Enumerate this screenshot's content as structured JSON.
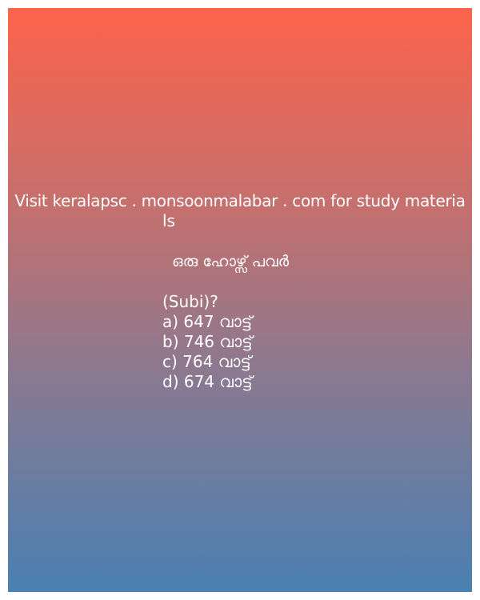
{
  "card": {
    "site_line_1": "Visit keralapsc . monsoonmalabar . com for study materia",
    "site_line_2": "ls",
    "question": "ഒരു ഹോഴ്സ് പവർ",
    "subject": "(Subi)?",
    "options": [
      "a) 647 വാട്ട്",
      "b) 746 വാട്ട്",
      "c) 764 വാട്ട്",
      "d) 674 വാട്ട്"
    ]
  },
  "colors": {
    "gradient_top": "#fd634b",
    "gradient_bottom": "#4a80b2",
    "text": "#ffffff"
  }
}
